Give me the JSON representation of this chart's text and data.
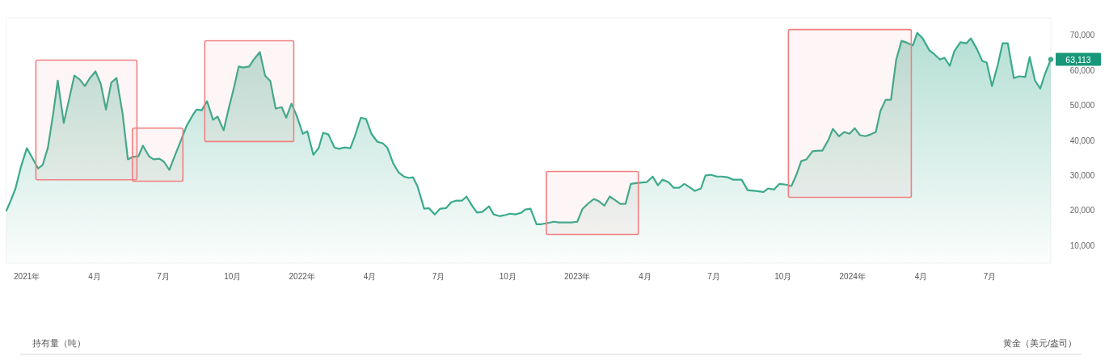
{
  "chart_data": {
    "type": "area",
    "color": "#3aaa8c",
    "xlim": [
      "2020-12-05",
      "2024-09-20"
    ],
    "ylim": [
      5000,
      75000
    ],
    "xticks": [
      {
        "value": "2021-01-01",
        "label": "2021年"
      },
      {
        "value": "2021-04-01",
        "label": "4月"
      },
      {
        "value": "2021-07-01",
        "label": "7月"
      },
      {
        "value": "2021-10-01",
        "label": "10月"
      },
      {
        "value": "2022-01-01",
        "label": "2022年"
      },
      {
        "value": "2022-04-01",
        "label": "4月"
      },
      {
        "value": "2022-07-01",
        "label": "7月"
      },
      {
        "value": "2022-10-01",
        "label": "10月"
      },
      {
        "value": "2023-01-01",
        "label": "2023年"
      },
      {
        "value": "2023-04-01",
        "label": "4月"
      },
      {
        "value": "2023-07-01",
        "label": "7月"
      },
      {
        "value": "2023-10-01",
        "label": "10月"
      },
      {
        "value": "2024-01-01",
        "label": "2024年"
      },
      {
        "value": "2024-04-01",
        "label": "4月"
      },
      {
        "value": "2024-07-01",
        "label": "7月"
      }
    ],
    "yticks": [
      {
        "value": 10000,
        "label": "10,000"
      },
      {
        "value": 20000,
        "label": "20,000"
      },
      {
        "value": 30000,
        "label": "30,000"
      },
      {
        "value": 40000,
        "label": "40,000"
      },
      {
        "value": 50000,
        "label": "50,000"
      },
      {
        "value": 60000,
        "label": "60,000"
      },
      {
        "value": 70000,
        "label": "70,000"
      }
    ],
    "x": [
      "2020-12-05",
      "2020-12-11",
      "2020-12-17",
      "2020-12-24",
      "2021-01-01",
      "2021-01-07",
      "2021-01-16",
      "2021-01-22",
      "2021-01-29",
      "2021-02-05",
      "2021-02-11",
      "2021-02-19",
      "2021-02-25",
      "2021-03-05",
      "2021-03-12",
      "2021-03-19",
      "2021-03-25",
      "2021-04-02",
      "2021-04-09",
      "2021-04-16",
      "2021-04-23",
      "2021-04-30",
      "2021-05-08",
      "2021-05-15",
      "2021-05-21",
      "2021-05-29",
      "2021-06-04",
      "2021-06-12",
      "2021-06-18",
      "2021-06-26",
      "2021-07-02",
      "2021-07-09",
      "2021-07-16",
      "2021-07-25",
      "2021-08-01",
      "2021-08-09",
      "2021-08-14",
      "2021-08-21",
      "2021-08-28",
      "2021-09-05",
      "2021-09-11",
      "2021-09-19",
      "2021-09-26",
      "2021-10-03",
      "2021-10-09",
      "2021-10-15",
      "2021-10-23",
      "2021-10-29",
      "2021-11-06",
      "2021-11-13",
      "2021-11-20",
      "2021-11-27",
      "2021-12-05",
      "2021-12-11",
      "2021-12-18",
      "2021-12-25",
      "2022-01-02",
      "2022-01-08",
      "2022-01-16",
      "2022-01-23",
      "2022-01-29",
      "2022-02-05",
      "2022-02-13",
      "2022-02-19",
      "2022-02-26",
      "2022-03-06",
      "2022-03-12",
      "2022-03-20",
      "2022-03-27",
      "2022-04-03",
      "2022-04-11",
      "2022-04-18",
      "2022-04-24",
      "2022-05-02",
      "2022-05-09",
      "2022-05-16",
      "2022-05-23",
      "2022-05-28",
      "2022-06-03",
      "2022-06-12",
      "2022-06-18",
      "2022-06-26",
      "2022-07-03",
      "2022-07-11",
      "2022-07-18",
      "2022-07-24",
      "2022-08-01",
      "2022-08-07",
      "2022-08-15",
      "2022-08-21",
      "2022-08-28",
      "2022-09-06",
      "2022-09-12",
      "2022-09-20",
      "2022-09-27",
      "2022-10-04",
      "2022-10-11",
      "2022-10-19",
      "2022-10-24",
      "2022-10-31",
      "2022-11-08",
      "2022-11-14",
      "2022-11-22",
      "2022-12-01",
      "2022-12-08",
      "2022-12-16",
      "2022-12-24",
      "2023-01-01",
      "2023-01-08",
      "2023-01-16",
      "2023-01-23",
      "2023-01-30",
      "2023-02-06",
      "2023-02-13",
      "2023-02-20",
      "2023-02-27",
      "2023-03-06",
      "2023-03-13",
      "2023-03-22",
      "2023-04-03",
      "2023-04-11",
      "2023-04-18",
      "2023-04-24",
      "2023-05-02",
      "2023-05-09",
      "2023-05-16",
      "2023-05-23",
      "2023-05-31",
      "2023-06-06",
      "2023-06-14",
      "2023-06-20",
      "2023-06-27",
      "2023-07-05",
      "2023-07-12",
      "2023-07-19",
      "2023-07-27",
      "2023-08-07",
      "2023-08-15",
      "2023-08-26",
      "2023-09-05",
      "2023-09-11",
      "2023-09-19",
      "2023-09-26",
      "2023-10-05",
      "2023-10-12",
      "2023-10-19",
      "2023-10-25",
      "2023-11-01",
      "2023-11-09",
      "2023-11-17",
      "2023-11-22",
      "2023-11-30",
      "2023-12-06",
      "2023-12-14",
      "2023-12-21",
      "2023-12-28",
      "2024-01-04",
      "2024-01-11",
      "2024-01-18",
      "2024-01-25",
      "2024-02-01",
      "2024-02-07",
      "2024-02-14",
      "2024-02-21",
      "2024-02-28",
      "2024-03-06",
      "2024-03-12",
      "2024-03-21",
      "2024-03-27",
      "2024-04-03",
      "2024-04-12",
      "2024-04-18",
      "2024-04-26",
      "2024-05-02",
      "2024-05-09",
      "2024-05-15",
      "2024-05-23",
      "2024-05-31",
      "2024-06-06",
      "2024-06-14",
      "2024-06-21",
      "2024-06-27",
      "2024-07-04",
      "2024-07-12",
      "2024-07-18",
      "2024-07-25",
      "2024-08-02",
      "2024-08-09",
      "2024-08-17",
      "2024-08-23",
      "2024-08-30",
      "2024-09-06",
      "2024-09-12",
      "2024-09-20"
    ],
    "values": [
      20000,
      23000,
      26300,
      32300,
      37800,
      35500,
      32000,
      33000,
      38000,
      47700,
      57100,
      45000,
      50700,
      58500,
      57400,
      55500,
      57600,
      59700,
      56200,
      48800,
      56500,
      57800,
      47700,
      34600,
      35300,
      35500,
      38500,
      35500,
      34600,
      34800,
      33900,
      31600,
      35500,
      40300,
      44200,
      47200,
      48800,
      48600,
      51200,
      45900,
      46800,
      42900,
      49300,
      55300,
      61100,
      60800,
      61100,
      63100,
      65200,
      58500,
      56900,
      49100,
      49500,
      46500,
      50500,
      47000,
      41900,
      42600,
      35900,
      37800,
      42200,
      41700,
      38000,
      37600,
      38000,
      37800,
      41200,
      46500,
      46100,
      41900,
      39600,
      39200,
      38000,
      33400,
      30900,
      29700,
      29300,
      29500,
      27000,
      20500,
      20700,
      18900,
      20500,
      20700,
      22400,
      22800,
      22800,
      24000,
      21200,
      19400,
      19600,
      21200,
      18900,
      18400,
      18700,
      19100,
      18900,
      19400,
      20300,
      20500,
      16100,
      16100,
      16400,
      16800,
      16600,
      16600,
      16600,
      16800,
      20500,
      22100,
      23300,
      22600,
      21400,
      24000,
      23000,
      21900,
      21900,
      27600,
      27900,
      28100,
      29700,
      27200,
      28800,
      28100,
      26500,
      26500,
      27600,
      26500,
      25600,
      26300,
      30000,
      30200,
      29700,
      29700,
      29500,
      28800,
      28800,
      25800,
      25600,
      25300,
      26300,
      26000,
      27600,
      27400,
      27000,
      30400,
      34100,
      34600,
      36900,
      37100,
      37100,
      40100,
      43300,
      41200,
      42400,
      41900,
      43500,
      41500,
      41200,
      41700,
      42400,
      48400,
      51600,
      51600,
      63100,
      68400,
      68000,
      67100,
      70700,
      69100,
      65700,
      64700,
      63100,
      63600,
      61300,
      65400,
      68000,
      67700,
      69100,
      66100,
      62700,
      62200,
      55500,
      61800,
      67700,
      67700,
      57800,
      58300,
      58100,
      63800,
      57100,
      54800,
      58800,
      63113
    ],
    "value_labels": [
      null,
      null,
      null,
      null,
      null,
      null,
      null,
      null,
      null,
      null,
      null,
      null,
      null,
      null,
      null,
      null,
      null,
      null,
      null,
      null,
      null,
      null,
      null,
      null,
      null,
      null,
      null,
      null,
      null,
      null,
      null,
      null,
      null,
      null,
      null,
      null,
      null,
      null,
      null,
      null,
      null,
      null,
      null,
      null,
      null,
      null,
      null,
      null,
      null,
      null,
      null,
      null,
      null,
      null,
      null,
      null,
      null,
      null,
      null,
      null,
      null,
      null,
      null,
      null,
      null,
      null,
      null,
      null,
      null,
      null,
      null,
      null,
      null,
      null,
      null,
      null,
      null,
      null,
      null,
      null,
      null,
      null,
      null,
      null,
      null,
      null,
      null,
      null,
      null,
      null,
      null,
      null,
      null,
      null,
      null,
      null,
      null,
      null,
      null,
      null,
      null,
      null,
      null,
      null,
      null,
      null,
      null,
      null,
      null,
      null,
      null,
      null,
      null,
      null,
      null,
      null,
      null,
      null,
      null,
      null,
      null,
      null,
      null,
      null,
      null,
      null,
      null,
      null,
      null,
      null,
      null,
      null,
      null,
      null,
      null,
      null,
      null,
      null,
      null,
      null,
      null,
      null,
      null,
      null,
      null,
      null,
      null,
      null,
      null,
      null,
      null,
      null,
      null,
      null,
      null,
      null,
      null,
      null,
      null,
      null,
      null,
      null,
      null,
      null,
      null,
      null,
      null,
      null,
      null,
      null,
      null,
      null,
      null,
      null,
      null,
      null,
      null,
      null,
      null,
      null,
      null,
      null,
      null,
      null,
      null,
      null,
      null,
      null,
      null,
      null,
      null,
      null,
      null,
      "63,113"
    ],
    "bands": [
      {
        "axis": "x",
        "from": "2021-01-13",
        "to": "2021-05-27",
        "color": "#f08080"
      },
      {
        "axis": "x",
        "from": "2021-05-21",
        "to": "2021-07-27",
        "color": "#f08080"
      },
      {
        "axis": "x",
        "from": "2021-08-25",
        "to": "2021-12-21",
        "color": "#f08080"
      },
      {
        "axis": "x",
        "from": "2022-11-21",
        "to": "2023-03-23",
        "color": "#f08080"
      },
      {
        "axis": "x",
        "from": "2023-10-08",
        "to": "2024-03-19",
        "color": "#f08080"
      }
    ],
    "annotations": [
      "持有量（吨）",
      "黄金（美元/盎司）"
    ]
  }
}
